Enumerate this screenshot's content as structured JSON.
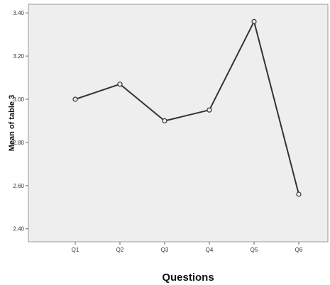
{
  "chart_data": {
    "type": "line",
    "title": "",
    "xlabel": "Questions",
    "ylabel": "Mean of table 3",
    "categories": [
      "Q1",
      "Q2",
      "Q3",
      "Q4",
      "Q5",
      "Q6"
    ],
    "series": [
      {
        "values": [
          3.0,
          3.07,
          2.9,
          2.95,
          3.36,
          2.56
        ]
      }
    ],
    "ylim": [
      2.34,
      3.44
    ],
    "yticks": [
      2.4,
      2.6,
      2.8,
      3.0,
      3.2,
      3.4
    ],
    "ytick_labels": [
      "2.40",
      "2.60",
      "2.80",
      "3.00",
      "3.20",
      "3.40"
    ],
    "grid": false,
    "legend": "none",
    "colors": {
      "plot_background": "#eeeeee",
      "line": "#333333",
      "marker_fill": "#eeeeee"
    }
  }
}
